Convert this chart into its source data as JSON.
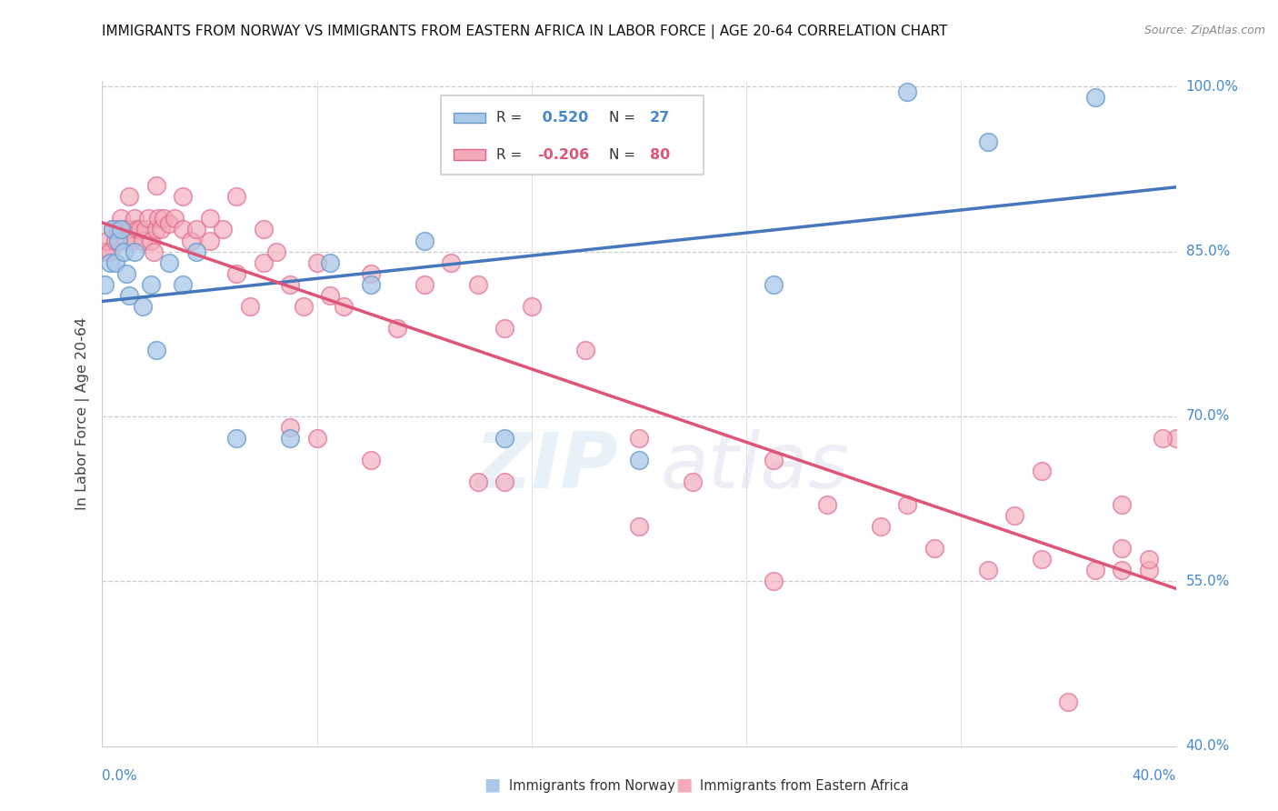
{
  "title": "IMMIGRANTS FROM NORWAY VS IMMIGRANTS FROM EASTERN AFRICA IN LABOR FORCE | AGE 20-64 CORRELATION CHART",
  "source": "Source: ZipAtlas.com",
  "ylabel": "In Labor Force | Age 20-64",
  "xmin": 0.0,
  "xmax": 0.4,
  "ymin": 0.4,
  "ymax": 1.005,
  "norway_color": "#aac8e8",
  "norway_edge": "#6699cc",
  "eastern_africa_color": "#f4aabb",
  "eastern_africa_edge": "#dd6688",
  "norway_line_color": "#4477bb",
  "eastern_africa_line_color": "#dd5577",
  "norway_R": 0.52,
  "norway_N": 27,
  "eastern_africa_R": -0.206,
  "eastern_africa_N": 80,
  "legend_label_norway": "Immigrants from Norway",
  "legend_label_eastern": "Immigrants from Eastern Africa",
  "norway_x": [
    0.001,
    0.003,
    0.004,
    0.005,
    0.006,
    0.007,
    0.008,
    0.009,
    0.01,
    0.012,
    0.015,
    0.018,
    0.02,
    0.025,
    0.03,
    0.035,
    0.05,
    0.07,
    0.085,
    0.1,
    0.12,
    0.15,
    0.2,
    0.25,
    0.3,
    0.33,
    0.37
  ],
  "norway_y": [
    0.82,
    0.84,
    0.87,
    0.84,
    0.86,
    0.87,
    0.85,
    0.83,
    0.81,
    0.85,
    0.8,
    0.82,
    0.76,
    0.84,
    0.82,
    0.85,
    0.68,
    0.68,
    0.84,
    0.82,
    0.86,
    0.68,
    0.66,
    0.82,
    0.995,
    0.95,
    0.99
  ],
  "eastern_x": [
    0.001,
    0.002,
    0.003,
    0.004,
    0.005,
    0.006,
    0.007,
    0.008,
    0.009,
    0.01,
    0.011,
    0.012,
    0.013,
    0.014,
    0.015,
    0.016,
    0.017,
    0.018,
    0.019,
    0.02,
    0.021,
    0.022,
    0.023,
    0.025,
    0.027,
    0.03,
    0.033,
    0.035,
    0.04,
    0.045,
    0.05,
    0.055,
    0.06,
    0.065,
    0.07,
    0.075,
    0.08,
    0.085,
    0.09,
    0.1,
    0.11,
    0.12,
    0.13,
    0.14,
    0.15,
    0.16,
    0.18,
    0.2,
    0.22,
    0.25,
    0.27,
    0.29,
    0.31,
    0.33,
    0.35,
    0.37,
    0.38,
    0.39,
    0.01,
    0.02,
    0.03,
    0.04,
    0.05,
    0.06,
    0.07,
    0.08,
    0.1,
    0.14,
    0.15,
    0.2,
    0.25,
    0.3,
    0.34,
    0.38,
    0.39,
    0.4,
    0.38,
    0.35,
    0.36,
    0.395
  ],
  "eastern_y": [
    0.85,
    0.86,
    0.85,
    0.87,
    0.86,
    0.87,
    0.88,
    0.87,
    0.86,
    0.87,
    0.86,
    0.88,
    0.87,
    0.87,
    0.86,
    0.87,
    0.88,
    0.86,
    0.85,
    0.87,
    0.88,
    0.87,
    0.88,
    0.875,
    0.88,
    0.87,
    0.86,
    0.87,
    0.86,
    0.87,
    0.83,
    0.8,
    0.84,
    0.85,
    0.82,
    0.8,
    0.84,
    0.81,
    0.8,
    0.83,
    0.78,
    0.82,
    0.84,
    0.82,
    0.78,
    0.8,
    0.76,
    0.68,
    0.64,
    0.66,
    0.62,
    0.6,
    0.58,
    0.56,
    0.57,
    0.56,
    0.58,
    0.56,
    0.9,
    0.91,
    0.9,
    0.88,
    0.9,
    0.87,
    0.69,
    0.68,
    0.66,
    0.64,
    0.64,
    0.6,
    0.55,
    0.62,
    0.61,
    0.62,
    0.57,
    0.68,
    0.56,
    0.65,
    0.44,
    0.68
  ]
}
